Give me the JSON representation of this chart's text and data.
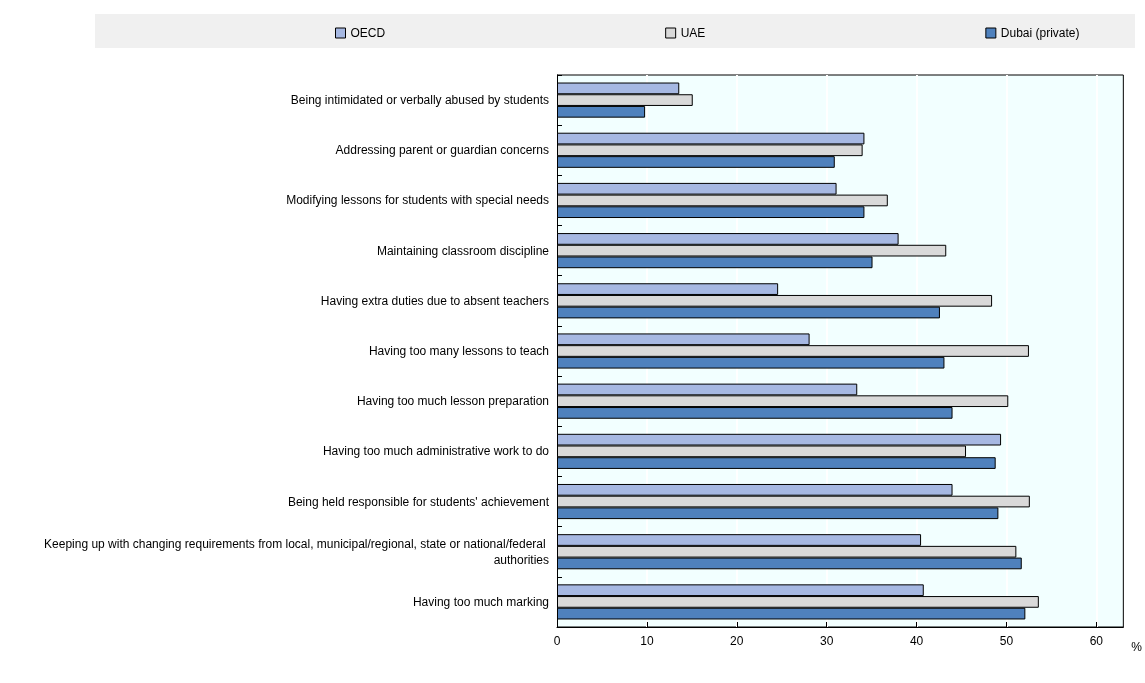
{
  "chart_data": {
    "type": "bar",
    "orientation": "horizontal",
    "categories": [
      "Being intimidated or verbally abused by students",
      "Addressing parent or guardian concerns",
      "Modifying lessons for students with special needs",
      "Maintaining classroom discipline",
      "Having extra duties due to absent teachers",
      "Having too many lessons to teach",
      "Having too much lesson preparation",
      "Having too much administrative work to do",
      "Being held responsible for students' achievement",
      "Keeping up with changing requirements from local, municipal/regional, state or national/federal authorities",
      "Having too much marking"
    ],
    "series": [
      {
        "name": "OECD",
        "color": "#a6b8e2",
        "values": [
          13.6,
          34.2,
          31.1,
          38.0,
          24.6,
          28.1,
          33.4,
          49.4,
          44.0,
          40.5,
          40.8
        ]
      },
      {
        "name": "UAE",
        "color": "#d9d9d9",
        "values": [
          15.1,
          34.0,
          36.8,
          43.3,
          48.4,
          52.5,
          50.2,
          45.5,
          52.6,
          51.1,
          53.6
        ]
      },
      {
        "name": "Dubai (private)",
        "color": "#4f81bd",
        "values": [
          9.8,
          30.9,
          34.2,
          35.1,
          42.6,
          43.1,
          44.0,
          48.8,
          49.1,
          51.7,
          52.1
        ]
      }
    ],
    "xlabel": "%",
    "xlim": [
      0,
      63
    ],
    "xticks": [
      0,
      10,
      20,
      30,
      40,
      50,
      60
    ],
    "grid": "x",
    "legend": "top"
  }
}
